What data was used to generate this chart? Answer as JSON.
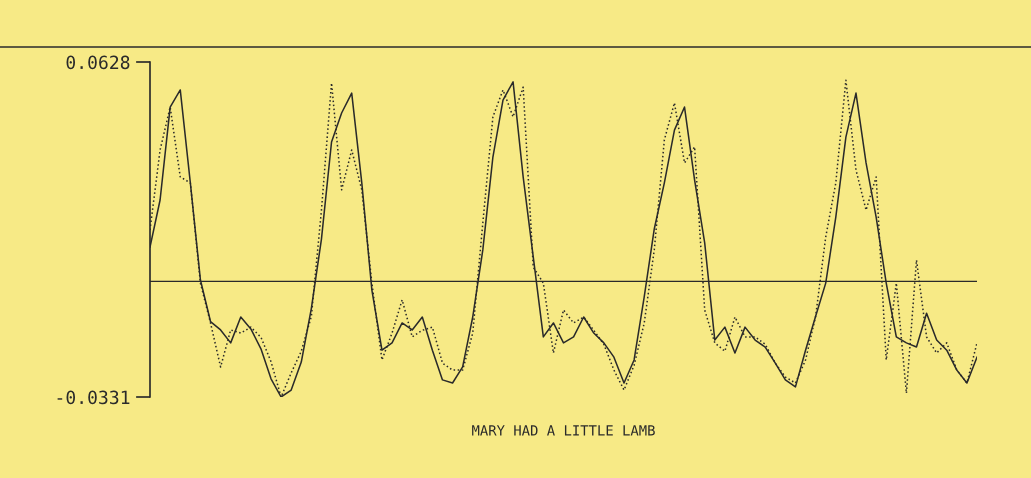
{
  "chart_data": {
    "type": "line",
    "xlabel": "MARY HAD A LITTLE LAMB",
    "categories": [
      null,
      null,
      null,
      null,
      null,
      null,
      null,
      null,
      null,
      null,
      null,
      null,
      null,
      null,
      null,
      null,
      null,
      null,
      null,
      null,
      null,
      null,
      null,
      null,
      null,
      null,
      null,
      null,
      null,
      null,
      null,
      null,
      null,
      null,
      null,
      null,
      null,
      null,
      null,
      null,
      null,
      null,
      null,
      null,
      null,
      null,
      null,
      null,
      null,
      null,
      null,
      null,
      null,
      null,
      null,
      null,
      null,
      null,
      null,
      null,
      null,
      null,
      null,
      null,
      null,
      null,
      null,
      null,
      null,
      null,
      null,
      null,
      null,
      null,
      null,
      null,
      null,
      null,
      null,
      null,
      null,
      null,
      null
    ],
    "ylim": [
      -0.0331,
      0.0628
    ],
    "yticks": [
      0.0628,
      -0.0331
    ],
    "tick_labels": "y",
    "ref_lines": [
      {
        "axis": "y",
        "value": 0,
        "color": "#2a2a2a"
      }
    ],
    "series": [
      {
        "color": "#2a2a2a",
        "line_style": "solid",
        "values": [
          0.0098,
          0.0233,
          0.0499,
          0.0548,
          0.0282,
          0.0004,
          -0.0115,
          -0.0139,
          -0.0176,
          -0.0102,
          -0.0136,
          -0.0193,
          -0.0279,
          -0.0331,
          -0.0311,
          -0.0231,
          -0.0077,
          0.0121,
          0.0399,
          0.0482,
          0.0539,
          0.0282,
          -0.0025,
          -0.0197,
          -0.0176,
          -0.0119,
          -0.0139,
          -0.0102,
          -0.0197,
          -0.0282,
          -0.0291,
          -0.0245,
          -0.0102,
          0.009,
          0.0356,
          0.0519,
          0.0571,
          0.0299,
          0.007,
          -0.0159,
          -0.0119,
          -0.0176,
          -0.0159,
          -0.0102,
          -0.0148,
          -0.0176,
          -0.0217,
          -0.0291,
          -0.0225,
          -0.0045,
          0.015,
          0.0282,
          0.0433,
          0.0499,
          0.029,
          0.011,
          -0.0168,
          -0.0131,
          -0.0205,
          -0.0131,
          -0.0168,
          -0.0188,
          -0.0234,
          -0.0282,
          -0.0302,
          -0.0197,
          -0.01,
          -0.0005,
          0.0184,
          0.0413,
          0.0539,
          0.0339,
          0.0184,
          -0.0005,
          -0.0159,
          -0.0176,
          -0.0188,
          -0.0091,
          -0.0168,
          -0.0197,
          -0.0254,
          -0.0291,
          -0.0217
        ]
      },
      {
        "color": "#2a2a2a",
        "line_style": "dotted",
        "values": [
          0.0147,
          0.0376,
          0.0499,
          0.0299,
          0.0282,
          -0.0005,
          -0.0119,
          -0.0245,
          -0.0139,
          -0.0148,
          -0.0131,
          -0.016,
          -0.023,
          -0.0331,
          -0.0262,
          -0.02,
          -0.01,
          0.0204,
          0.0568,
          0.0262,
          0.0376,
          0.0262,
          -0.0005,
          -0.0225,
          -0.0148,
          -0.0053,
          -0.0159,
          -0.014,
          -0.0131,
          -0.0234,
          -0.0254,
          -0.0254,
          -0.0148,
          0.0167,
          0.0471,
          0.0548,
          0.0471,
          0.0556,
          0.0041,
          -0.0005,
          -0.0205,
          -0.0082,
          -0.0119,
          -0.0102,
          -0.014,
          -0.018,
          -0.0254,
          -0.0311,
          -0.024,
          -0.012,
          0.009,
          0.0405,
          0.0511,
          0.0339,
          0.0385,
          -0.0082,
          -0.0176,
          -0.02,
          -0.0102,
          -0.0159,
          -0.0159,
          -0.018,
          -0.0234,
          -0.0274,
          -0.0291,
          -0.0225,
          -0.01,
          0.0127,
          0.0282,
          0.0576,
          0.0319,
          0.0204,
          0.0299,
          -0.0225,
          -0.0005,
          -0.032,
          0.0061,
          -0.0159,
          -0.0205,
          -0.0176,
          -0.0254,
          -0.0291,
          -0.0176
        ]
      }
    ]
  }
}
